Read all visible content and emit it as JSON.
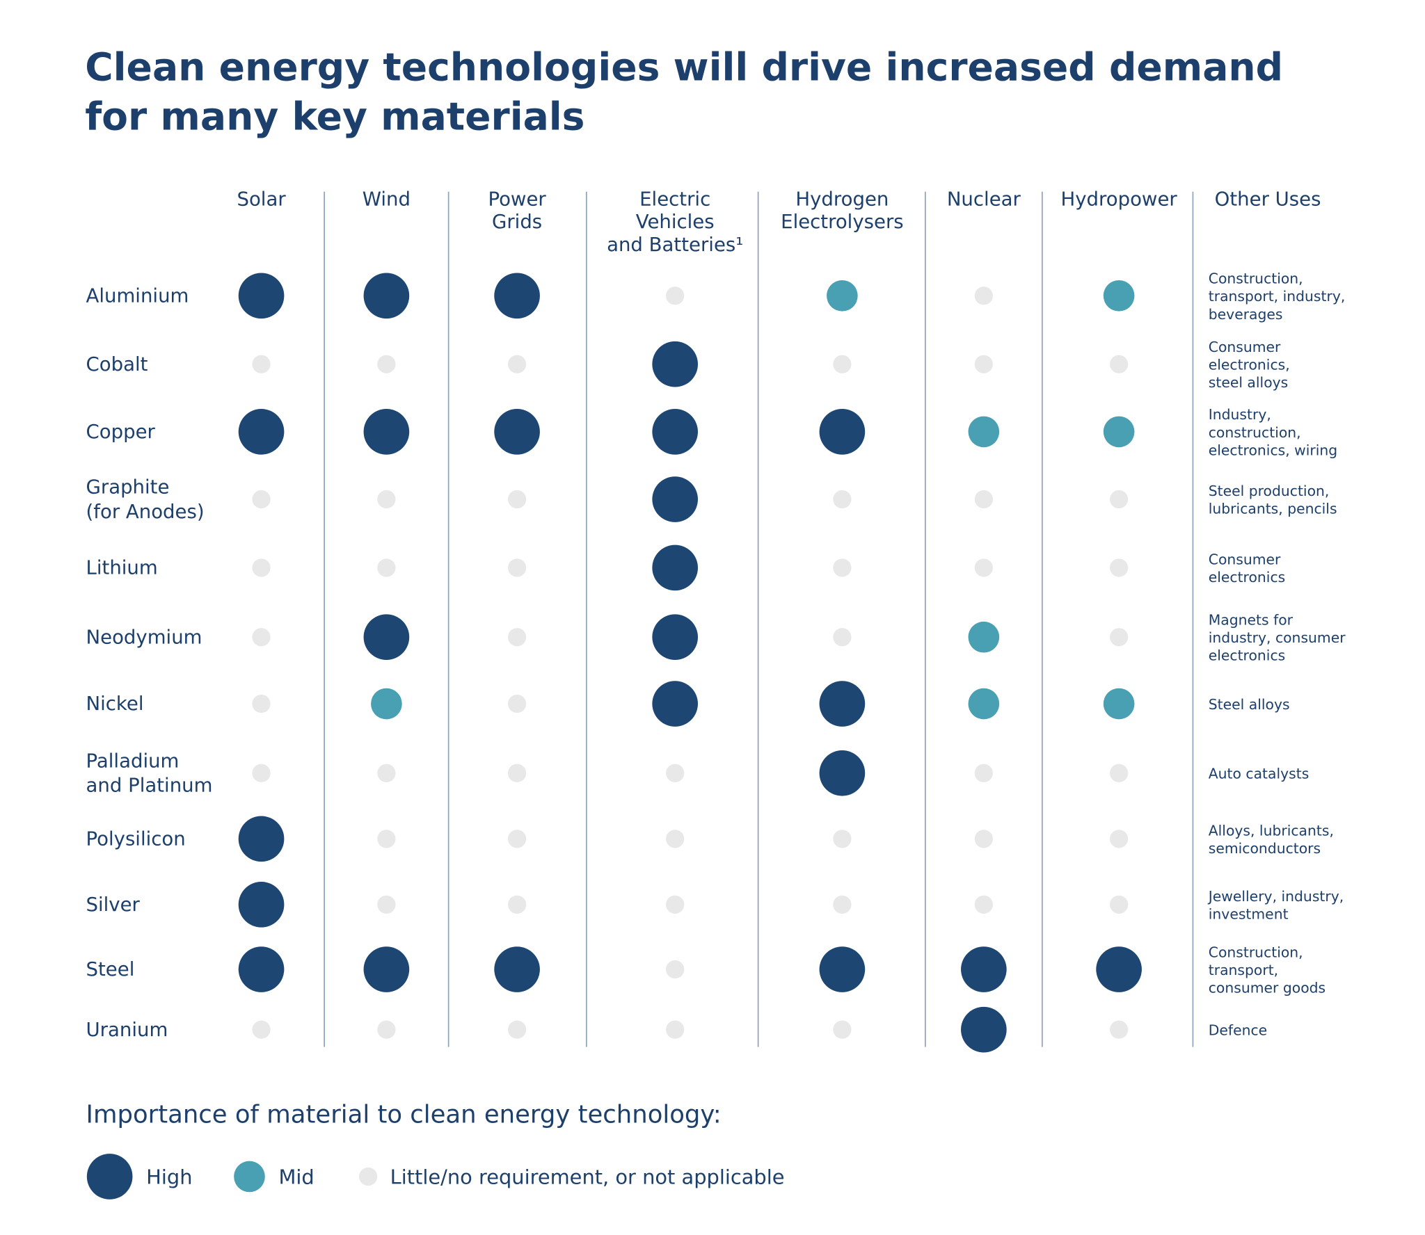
{
  "title": [
    "Clean energy technologies will drive increased demand",
    "for many key materials"
  ],
  "columns": [
    {
      "label": [
        "Solar"
      ]
    },
    {
      "label": [
        "Wind"
      ]
    },
    {
      "label": [
        "Power",
        "Grids"
      ]
    },
    {
      "label": [
        "Electric",
        "Vehicles",
        "and Batteries¹"
      ]
    },
    {
      "label": [
        "Hydrogen",
        "Electrolysers"
      ]
    },
    {
      "label": [
        "Nuclear"
      ]
    },
    {
      "label": [
        "Hydropower"
      ]
    }
  ],
  "other_uses_header": "Other Uses",
  "rows": [
    {
      "label": [
        "Aluminium"
      ],
      "levels": [
        0,
        0,
        0,
        2,
        1,
        2,
        1
      ],
      "other_uses": [
        "Construction,",
        "transport, industry,",
        "beverages"
      ]
    },
    {
      "label": [
        "Cobalt"
      ],
      "levels": [
        2,
        2,
        2,
        0,
        2,
        2,
        2
      ],
      "other_uses": [
        "Consumer",
        "electronics,",
        "steel alloys"
      ]
    },
    {
      "label": [
        "Copper"
      ],
      "levels": [
        0,
        0,
        0,
        0,
        0,
        1,
        1
      ],
      "other_uses": [
        "Industry,",
        "construction,",
        "electronics, wiring"
      ]
    },
    {
      "label": [
        "Graphite",
        "(for Anodes)"
      ],
      "levels": [
        2,
        2,
        2,
        0,
        2,
        2,
        2
      ],
      "other_uses": [
        "Steel production,",
        "lubricants, pencils"
      ]
    },
    {
      "label": [
        "Lithium"
      ],
      "levels": [
        2,
        2,
        2,
        0,
        2,
        2,
        2
      ],
      "other_uses": [
        "Consumer",
        "electronics"
      ]
    },
    {
      "label": [
        "Neodymium"
      ],
      "levels": [
        2,
        0,
        2,
        0,
        2,
        1,
        2
      ],
      "other_uses": [
        "Magnets for",
        "industry, consumer",
        "electronics"
      ]
    },
    {
      "label": [
        "Nickel"
      ],
      "levels": [
        2,
        1,
        2,
        0,
        0,
        1,
        1
      ],
      "other_uses": [
        "Steel alloys"
      ]
    },
    {
      "label": [
        "Palladium",
        "and Platinum"
      ],
      "levels": [
        2,
        2,
        2,
        2,
        0,
        2,
        2
      ],
      "other_uses": [
        "Auto catalysts"
      ]
    },
    {
      "label": [
        "Polysilicon"
      ],
      "levels": [
        0,
        2,
        2,
        2,
        2,
        2,
        2
      ],
      "other_uses": [
        "Alloys, lubricants,",
        "semiconductors"
      ]
    },
    {
      "label": [
        "Silver"
      ],
      "levels": [
        0,
        2,
        2,
        2,
        2,
        2,
        2
      ],
      "other_uses": [
        "Jewellery, industry,",
        "investment"
      ]
    },
    {
      "label": [
        "Steel"
      ],
      "levels": [
        0,
        0,
        0,
        2,
        0,
        0,
        0
      ],
      "other_uses": [
        "Construction,",
        "transport,",
        "consumer goods"
      ]
    },
    {
      "label": [
        "Uranium"
      ],
      "levels": [
        2,
        2,
        2,
        2,
        2,
        0,
        2
      ],
      "other_uses": [
        "Defence"
      ]
    }
  ],
  "legend": {
    "title": "Importance of material to clean energy technology:",
    "items": [
      {
        "label": "High",
        "color": "#1d4672"
      },
      {
        "label": "Mid",
        "color": "#4aa0b3"
      },
      {
        "label": "Little/no requirement, or not applicable",
        "color": "#e8e8e8"
      }
    ]
  }
}
